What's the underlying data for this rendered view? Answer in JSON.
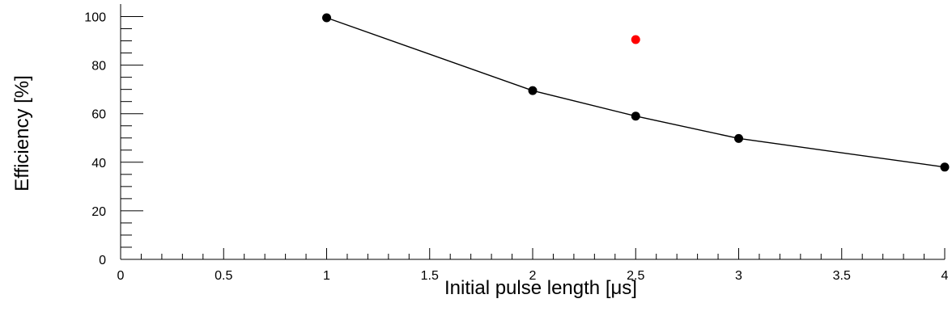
{
  "chart_data": {
    "type": "scatter",
    "title": "",
    "xlabel": "Initial pulse length  [μs]",
    "ylabel": "Efficiency  [%]",
    "xlim": [
      0,
      4
    ],
    "ylim": [
      0,
      100
    ],
    "x_ticks": [
      0,
      0.5,
      1,
      1.5,
      2,
      2.5,
      3,
      3.5,
      4
    ],
    "x_tick_labels": [
      "0",
      "0.5",
      "1",
      "1.5",
      "2",
      "2.5",
      "3",
      "3.5",
      "4"
    ],
    "y_ticks": [
      0,
      20,
      40,
      60,
      80,
      100
    ],
    "y_tick_labels": [
      "0",
      "20",
      "40",
      "60",
      "80",
      "100"
    ],
    "grid": false,
    "series": [
      {
        "color": "#000000",
        "connected": true,
        "x": [
          1,
          2,
          2.5,
          3,
          4
        ],
        "y": [
          99.5,
          69.5,
          59,
          49.8,
          38
        ]
      },
      {
        "color": "#ff0000",
        "connected": false,
        "x": [
          2.5
        ],
        "y": [
          90.5
        ]
      }
    ]
  }
}
